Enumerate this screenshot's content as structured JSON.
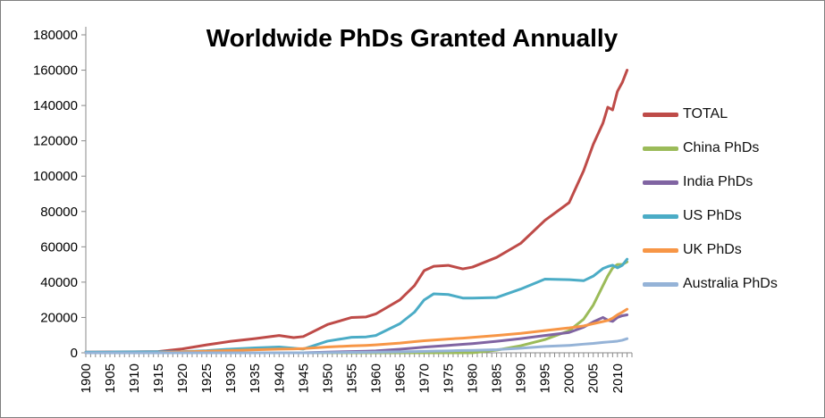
{
  "chart_data": {
    "type": "line",
    "title": "Worldwide PhDs Granted Annually",
    "xlabel": "",
    "ylabel": "",
    "ylim": [
      0,
      180000
    ],
    "ytick_step": 20000,
    "xlim": [
      1900,
      2013
    ],
    "grid": false,
    "legend_position": "right",
    "xticks": [
      1900,
      1905,
      1910,
      1915,
      1920,
      1925,
      1930,
      1935,
      1940,
      1945,
      1950,
      1955,
      1960,
      1965,
      1970,
      1975,
      1980,
      1985,
      1990,
      1995,
      2000,
      2005,
      2010
    ],
    "x": [
      1900,
      1905,
      1910,
      1915,
      1920,
      1925,
      1930,
      1935,
      1940,
      1943,
      1945,
      1950,
      1955,
      1958,
      1960,
      1965,
      1968,
      1970,
      1972,
      1975,
      1978,
      1980,
      1985,
      1990,
      1995,
      2000,
      2003,
      2005,
      2007,
      2008,
      2009,
      2010,
      2011,
      2012
    ],
    "series": [
      {
        "name": "TOTAL",
        "color": "#BE4B48",
        "values": [
          400,
          500,
          600,
          700,
          2200,
          4500,
          6500,
          8000,
          9800,
          8600,
          9200,
          16000,
          20000,
          20300,
          22000,
          30000,
          38000,
          46500,
          49000,
          49500,
          47500,
          48500,
          54000,
          62000,
          75000,
          85000,
          103000,
          118000,
          130000,
          139000,
          137500,
          148000,
          153000,
          160000
        ]
      },
      {
        "name": "China PhDs",
        "color": "#9BBB59",
        "values": [
          0,
          0,
          0,
          0,
          0,
          0,
          0,
          0,
          0,
          0,
          0,
          0,
          0,
          0,
          0,
          0,
          0,
          0,
          0,
          0,
          0,
          0,
          1500,
          4000,
          7500,
          12500,
          19000,
          27000,
          38000,
          43500,
          48000,
          50000,
          50000,
          51500
        ]
      },
      {
        "name": "India PhDs",
        "color": "#8064A2",
        "values": [
          0,
          0,
          0,
          0,
          0,
          0,
          0,
          0,
          0,
          0,
          0,
          400,
          700,
          900,
          1100,
          2000,
          2700,
          3200,
          3600,
          4200,
          4800,
          5200,
          6500,
          8000,
          9800,
          11500,
          14500,
          17500,
          20000,
          18500,
          17800,
          20000,
          21000,
          21500
        ]
      },
      {
        "name": "US PhDs",
        "color": "#4BACC6",
        "values": [
          350,
          400,
          500,
          600,
          650,
          1200,
          2100,
          2800,
          3300,
          2600,
          2100,
          6600,
          8800,
          9000,
          9800,
          16500,
          23000,
          29900,
          33400,
          33000,
          31000,
          31000,
          31300,
          36100,
          41700,
          41400,
          40800,
          43400,
          47700,
          48800,
          49600,
          48100,
          49500,
          53000
        ]
      },
      {
        "name": "UK PhDs",
        "color": "#F79646",
        "values": [
          0,
          0,
          0,
          50,
          500,
          900,
          1300,
          1700,
          2100,
          2200,
          2400,
          3300,
          3900,
          4200,
          4500,
          5500,
          6300,
          6800,
          7200,
          7800,
          8300,
          8700,
          9800,
          11000,
          12600,
          14100,
          15200,
          16500,
          17700,
          18300,
          19600,
          21500,
          23000,
          24700
        ]
      },
      {
        "name": "Australia PhDs",
        "color": "#95B3D7",
        "values": [
          0,
          0,
          0,
          0,
          0,
          0,
          0,
          0,
          0,
          0,
          0,
          150,
          250,
          300,
          350,
          550,
          700,
          850,
          950,
          1100,
          1300,
          1400,
          1800,
          2600,
          3600,
          4200,
          4900,
          5300,
          5900,
          6100,
          6300,
          6600,
          7100,
          8000
        ]
      }
    ]
  },
  "axis": {
    "color": "#898989",
    "tick_label_color": "#000000"
  }
}
